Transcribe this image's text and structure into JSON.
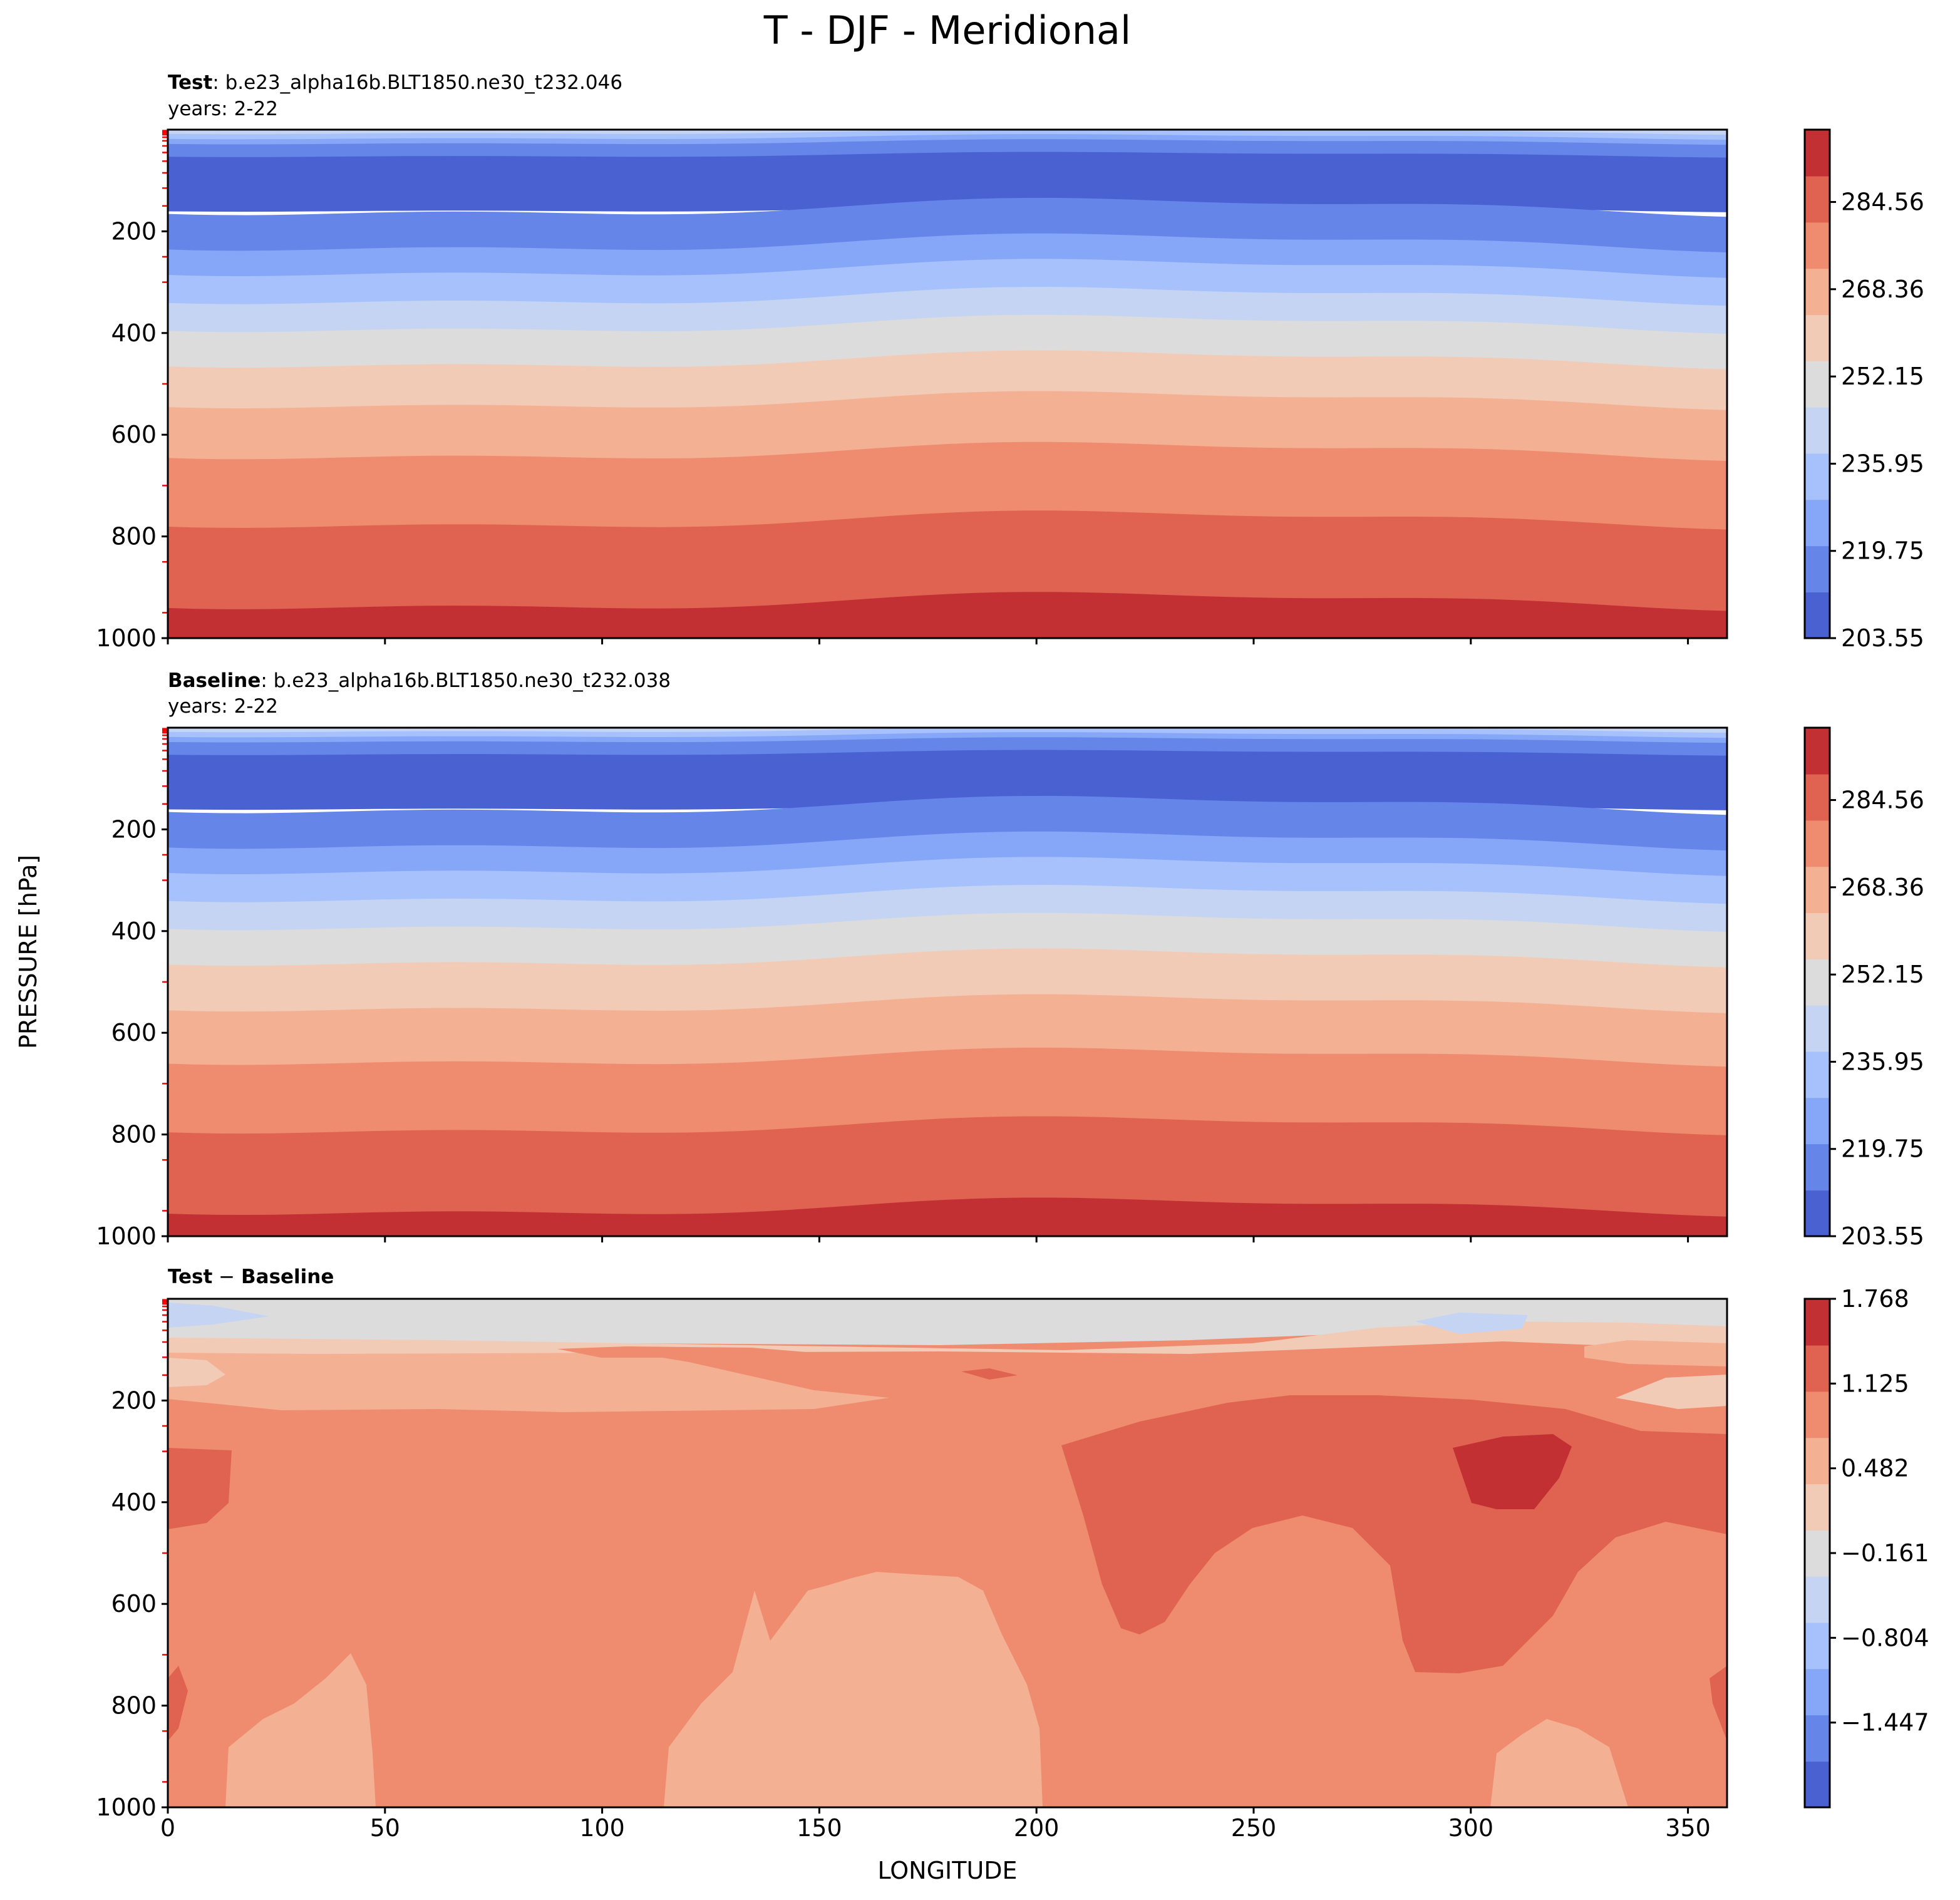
{
  "figure": {
    "title": "T - DJF - Meridional",
    "xlabel": "LONGITUDE",
    "ylabel": "PRESSURE [hPa]"
  },
  "colors": {
    "cool": [
      "#4a61d2",
      "#6585e8",
      "#86a6f7",
      "#a6c1fb",
      "#c4d4f2"
    ],
    "neutral": "#dcdcdc",
    "warm": [
      "#f2cbb7",
      "#f4b093",
      "#ef8c6f",
      "#df6350",
      "#c23034"
    ]
  },
  "chart_data": [
    {
      "type": "contour",
      "panel": "test",
      "title_bold": "Test",
      "title_rest": ": b.e23_alpha16b.BLT1850.ne30_t232.046",
      "subtitle": "years: 2-22",
      "variable": "T",
      "season": "DJF",
      "xlim": [
        0,
        359
      ],
      "ylim": [
        1000,
        0
      ],
      "y_ticks": [
        "200",
        "400",
        "600",
        "800",
        "1000"
      ],
      "y_tick_values": [
        200,
        400,
        600,
        800,
        1000
      ],
      "colorbar": {
        "range": [
          203.55,
          298.0
        ],
        "tick_labels": [
          "284.56",
          "268.36",
          "252.15",
          "235.95",
          "219.75",
          "203.55"
        ],
        "tick_values": [
          284.56,
          268.36,
          252.15,
          235.95,
          219.75,
          203.55
        ],
        "levels": [
          203.55,
          211.65,
          219.75,
          227.85,
          235.95,
          244.05,
          252.15,
          260.26,
          268.36,
          276.46,
          284.56,
          292.0
        ]
      },
      "band_boundaries_hpa": [
        5,
        15,
        25,
        50,
        155,
        225,
        275,
        330,
        385,
        455,
        535,
        635,
        770,
        930
      ]
    },
    {
      "type": "contour",
      "panel": "baseline",
      "title_bold": "Baseline",
      "title_rest": ": b.e23_alpha16b.BLT1850.ne30_t232.038",
      "subtitle": "years: 2-22",
      "variable": "T",
      "season": "DJF",
      "xlim": [
        0,
        359
      ],
      "ylim": [
        1000,
        0
      ],
      "y_ticks": [
        "200",
        "400",
        "600",
        "800",
        "1000"
      ],
      "y_tick_values": [
        200,
        400,
        600,
        800,
        1000
      ],
      "colorbar": {
        "range": [
          203.55,
          298.0
        ],
        "tick_labels": [
          "284.56",
          "268.36",
          "252.15",
          "235.95",
          "219.75",
          "203.55"
        ],
        "tick_values": [
          284.56,
          268.36,
          252.15,
          235.95,
          219.75,
          203.55
        ],
        "levels": [
          203.55,
          211.65,
          219.75,
          227.85,
          235.95,
          244.05,
          252.15,
          260.26,
          268.36,
          276.46,
          284.56,
          292.0
        ]
      },
      "band_boundaries_hpa": [
        5,
        15,
        25,
        50,
        155,
        225,
        275,
        330,
        385,
        455,
        545,
        650,
        785,
        945
      ]
    },
    {
      "type": "contour",
      "panel": "difference",
      "title_bold": "Test",
      "title_sep": " − ",
      "title_bold2": "Baseline",
      "xlim": [
        0,
        359
      ],
      "ylim": [
        1000,
        0
      ],
      "x_ticks": [
        "0",
        "50",
        "100",
        "150",
        "200",
        "250",
        "300",
        "350"
      ],
      "x_tick_values": [
        0,
        50,
        100,
        150,
        200,
        250,
        300,
        350
      ],
      "y_ticks": [
        "200",
        "400",
        "600",
        "800",
        "1000"
      ],
      "y_tick_values": [
        200,
        400,
        600,
        800,
        1000
      ],
      "colorbar": {
        "range": [
          -2.09,
          1.768
        ],
        "tick_labels": [
          "1.768",
          "1.125",
          "0.482",
          "−0.161",
          "−0.804",
          "−1.447"
        ],
        "tick_values": [
          1.768,
          1.125,
          0.482,
          -0.161,
          -0.804,
          -1.447
        ]
      }
    }
  ]
}
